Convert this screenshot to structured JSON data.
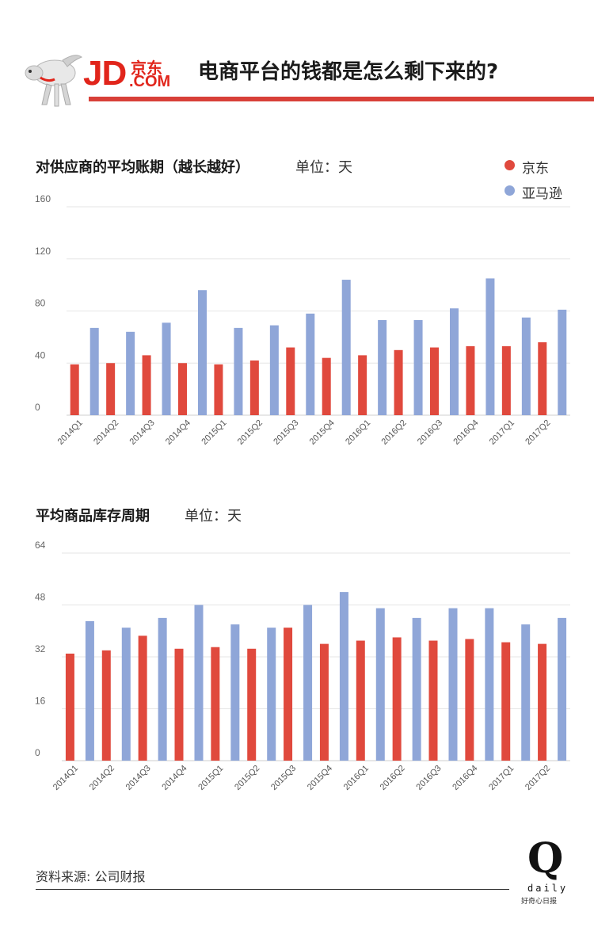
{
  "header": {
    "logo_jd": "JD",
    "logo_cn": "京东",
    "logo_com": ".COM",
    "title": "电商平台的钱都是怎么剩下来的?"
  },
  "colors": {
    "jd": "#e0493d",
    "amazon": "#8fa6d8",
    "accent": "#d84038"
  },
  "legend": [
    {
      "name": "京东",
      "color": "#e0493d"
    },
    {
      "name": "亚马逊",
      "color": "#8fa6d8"
    }
  ],
  "chart_data": [
    {
      "type": "bar",
      "title": "对供应商的平均账期（越长越好）",
      "unit": "单位：天",
      "categories": [
        "2014Q1",
        "2014Q2",
        "2014Q3",
        "2014Q4",
        "2015Q1",
        "2015Q2",
        "2015Q3",
        "2015Q4",
        "2016Q1",
        "2016Q2",
        "2016Q3",
        "2016Q4",
        "2017Q1",
        "2017Q2"
      ],
      "yticks": [
        "0",
        "40",
        "80",
        "120",
        "160"
      ],
      "ylim": [
        0,
        160
      ],
      "grid": true,
      "legend_position": "top-right",
      "series": [
        {
          "name": "京东",
          "values": [
            39,
            40,
            46,
            40,
            39,
            42,
            52,
            44,
            46,
            50,
            52,
            53,
            53,
            56
          ]
        },
        {
          "name": "亚马逊",
          "values": [
            67,
            64,
            71,
            96,
            67,
            69,
            78,
            104,
            73,
            73,
            82,
            105,
            75,
            81
          ]
        }
      ]
    },
    {
      "type": "bar",
      "title": "平均商品库存周期",
      "unit": "单位：天",
      "categories": [
        "2014Q1",
        "2014Q2",
        "2014Q3",
        "2014Q4",
        "2015Q1",
        "2015Q2",
        "2015Q3",
        "2015Q4",
        "2016Q1",
        "2016Q2",
        "2016Q3",
        "2016Q4",
        "2017Q1",
        "2017Q2"
      ],
      "yticks": [
        "0",
        "16",
        "32",
        "48",
        "64"
      ],
      "ylim": [
        0,
        64
      ],
      "grid": true,
      "series": [
        {
          "name": "京东",
          "values": [
            33,
            34,
            38.5,
            34.5,
            35,
            34.5,
            41,
            36,
            37,
            38,
            37,
            37.5,
            36.5,
            36
          ]
        },
        {
          "name": "亚马逊",
          "values": [
            43,
            41,
            44,
            48,
            42,
            41,
            48,
            52,
            47,
            44,
            47,
            47,
            42,
            44
          ]
        }
      ]
    }
  ],
  "footer": {
    "source": "资料来源: 公司财报",
    "brand_q": "Q",
    "brand_daily": "daily",
    "brand_cn": "好奇心日报"
  }
}
